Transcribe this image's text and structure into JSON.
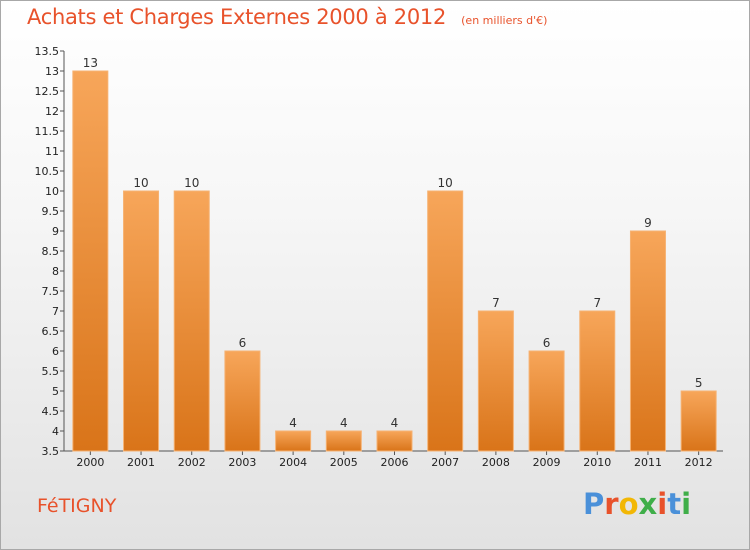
{
  "header": {
    "title": "Achats et Charges Externes 2000 à 2012",
    "unit": "(en milliers d'€)"
  },
  "footer": {
    "commune": "FéTIGNY",
    "brand": "Proxiti"
  },
  "colors": {
    "title": "#e8522b",
    "bar_light": "#f7a65a",
    "bar_dark": "#d97419",
    "brand_letters": [
      "#4a90d9",
      "#e8522b",
      "#f2b705",
      "#3fae49",
      "#e8522b",
      "#4a90d9",
      "#3fae49"
    ]
  },
  "chart_data": {
    "type": "bar",
    "title": "Achats et Charges Externes 2000 à 2012",
    "subtitle": "(en milliers d'€)",
    "xlabel": "",
    "ylabel": "",
    "categories": [
      "2000",
      "2001",
      "2002",
      "2003",
      "2004",
      "2005",
      "2006",
      "2007",
      "2008",
      "2009",
      "2010",
      "2011",
      "2012"
    ],
    "values": [
      13,
      10,
      10,
      6,
      4,
      4,
      4,
      10,
      7,
      6,
      7,
      9,
      5
    ],
    "data_labels": [
      "13",
      "10",
      "10",
      "6",
      "4",
      "4",
      "4",
      "10",
      "7",
      "6",
      "7",
      "9",
      "5"
    ],
    "ylim": [
      3.5,
      13.5
    ],
    "yticks": [
      3.5,
      4,
      4.5,
      5,
      5.5,
      6,
      6.5,
      7,
      7.5,
      8,
      8.5,
      9,
      9.5,
      10,
      10.5,
      11,
      11.5,
      12,
      12.5,
      13,
      13.5
    ],
    "ytick_labels": [
      "3.5",
      "4",
      "4.5",
      "5",
      "5.5",
      "6",
      "6.5",
      "7",
      "7.5",
      "8",
      "8.5",
      "9",
      "9.5",
      "10",
      "10.5",
      "11",
      "11.5",
      "12",
      "12.5",
      "13",
      "13.5"
    ],
    "grid": false,
    "legend": "none"
  }
}
